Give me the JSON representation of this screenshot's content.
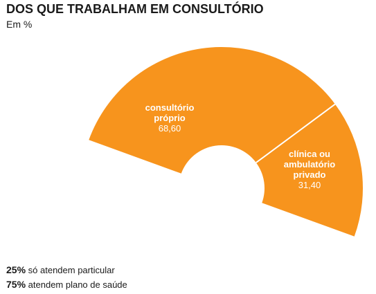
{
  "header": {
    "title": "DOS QUE TRABALHAM EM CONSULTÓRIO",
    "subtitle": "Em %"
  },
  "chart_data": {
    "type": "pie",
    "variant": "half-donut",
    "title": "DOS QUE TRABALHAM EM CONSULTÓRIO",
    "subtitle": "Em %",
    "slices": [
      {
        "label_lines": [
          "consultório",
          "próprio"
        ],
        "value": 68.6,
        "value_text": "68,60",
        "color": "#f7941d"
      },
      {
        "label_lines": [
          "clínica ou",
          "ambulatório",
          "privado"
        ],
        "value": 31.4,
        "value_text": "31,40",
        "color": "#f7941d"
      }
    ],
    "separator_color": "#ffffff"
  },
  "notes": [
    {
      "pct": "25%",
      "text": "só atendem particular"
    },
    {
      "pct": "75%",
      "text": "atendem plano de saúde"
    }
  ]
}
